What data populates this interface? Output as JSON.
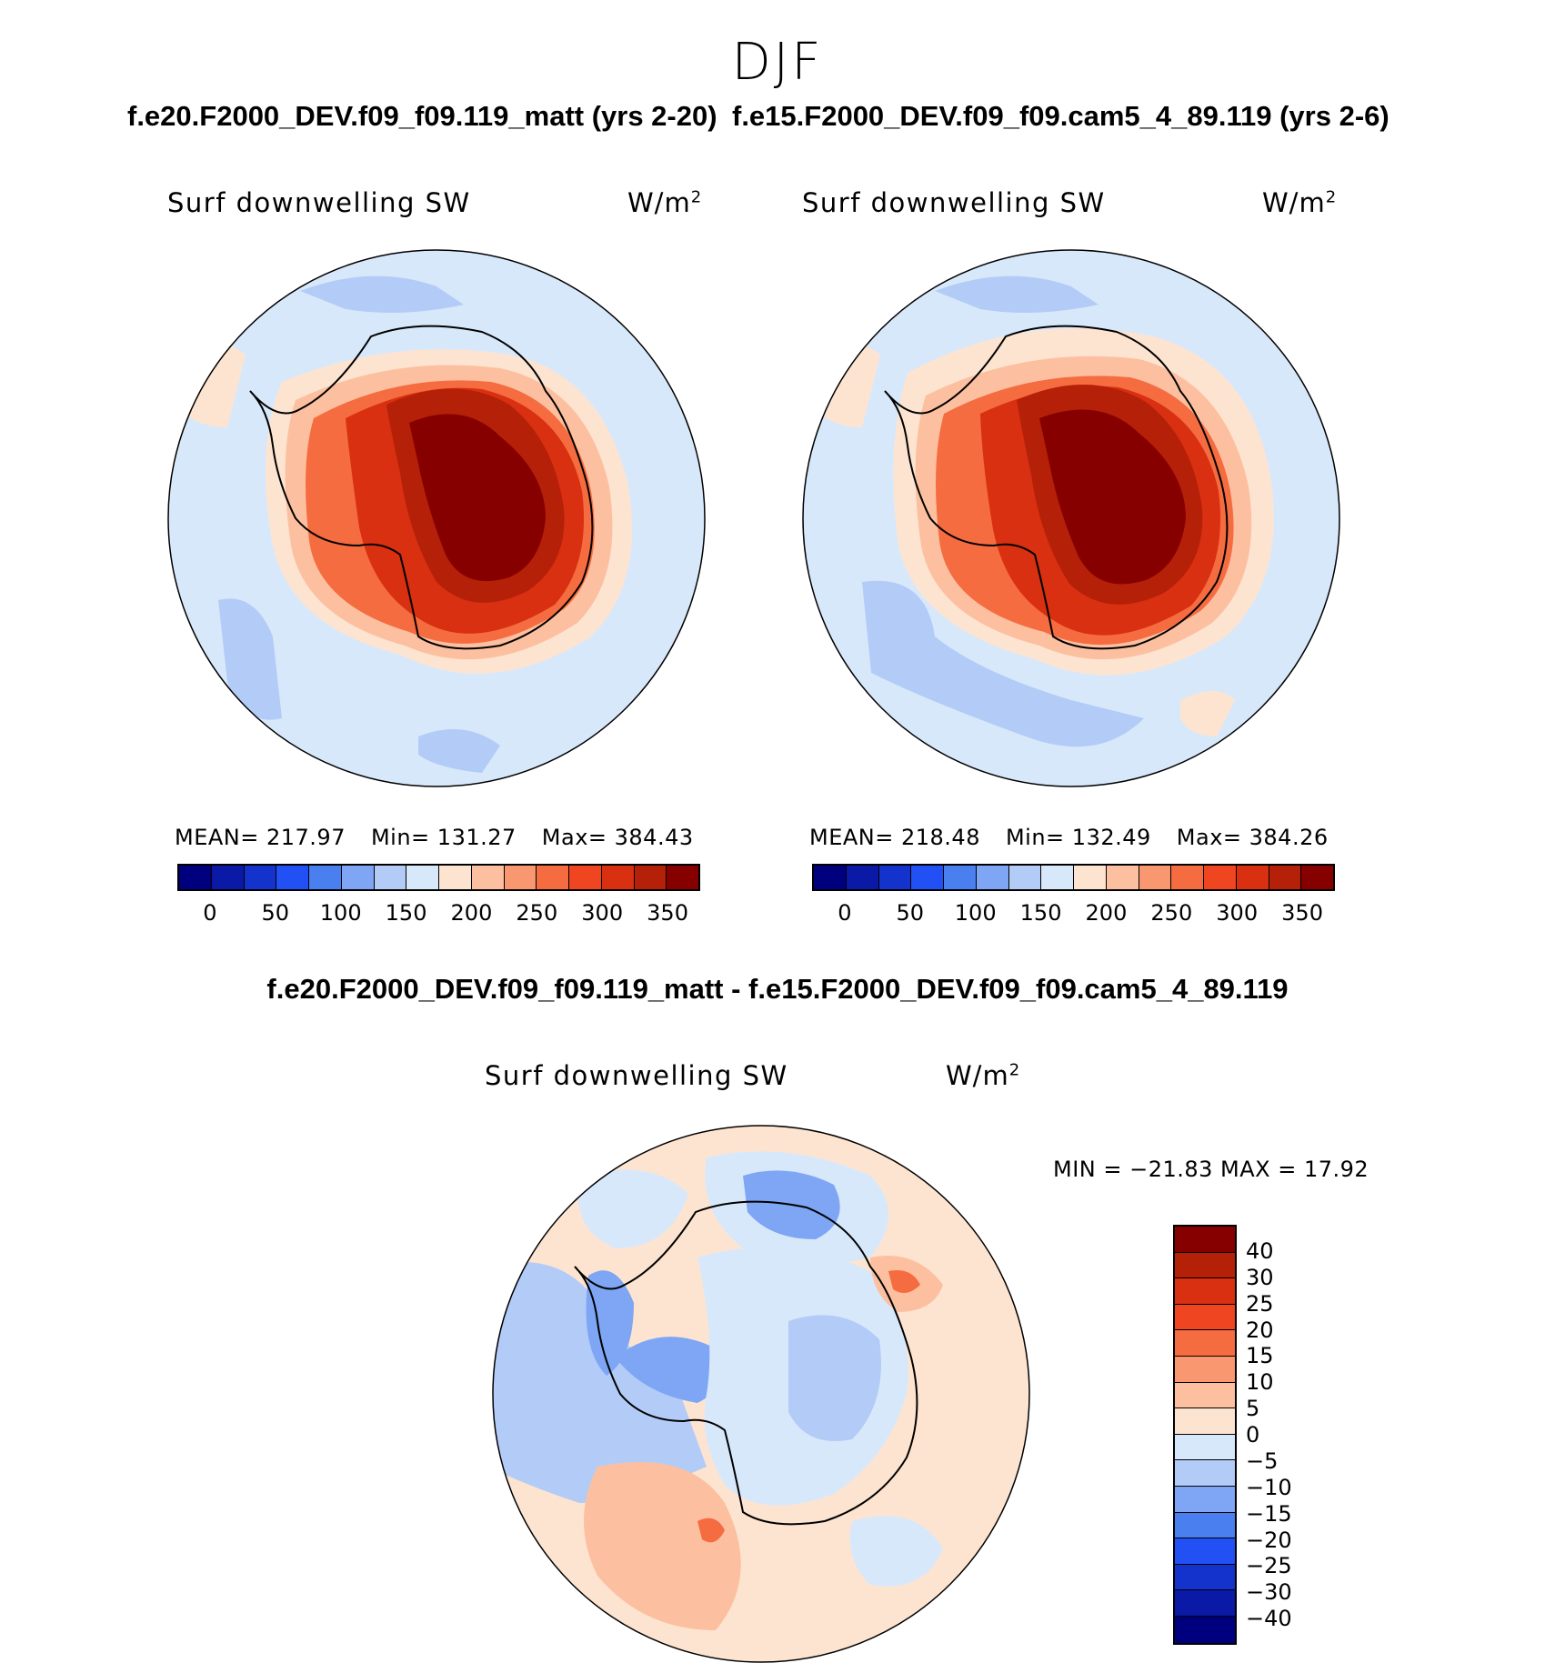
{
  "season": "DJF",
  "panels": [
    {
      "title": "f.e20.F2000_DEV.f09_f09.119_matt (yrs 2-20)",
      "variable": "Surf downwelling SW",
      "units": "W/m",
      "units_sup": "2",
      "stats": {
        "mean_label": "MEAN= 217.97",
        "min_label": "Min= 131.27",
        "max_label": "Max= 384.43"
      }
    },
    {
      "title": "f.e15.F2000_DEV.f09_f09.cam5_4_89.119 (yrs 2-6)",
      "variable": "Surf downwelling SW",
      "units": "W/m",
      "units_sup": "2",
      "stats": {
        "mean_label": "MEAN= 218.48",
        "min_label": "Min= 132.49",
        "max_label": "Max= 384.26"
      }
    }
  ],
  "abs_colorbar": {
    "ticks": [
      "0",
      "50",
      "100",
      "150",
      "200",
      "250",
      "300",
      "350"
    ],
    "colors": [
      "#00007f",
      "#0a1aa6",
      "#1432cc",
      "#2150f5",
      "#4a7ff0",
      "#7ea6f5",
      "#b3ccf7",
      "#d8e8fb",
      "#fde4d1",
      "#fcc0a0",
      "#f99770",
      "#f56c40",
      "#ef4520",
      "#d83010",
      "#b52008",
      "#860000"
    ]
  },
  "diff": {
    "title": "f.e20.F2000_DEV.f09_f09.119_matt - f.e15.F2000_DEV.f09_f09.cam5_4_89.119",
    "variable": "Surf downwelling SW",
    "units": "W/m",
    "units_sup": "2",
    "minmax": "MIN = −21.83 MAX =   17.92",
    "colorbar": {
      "ticks": [
        "40",
        "30",
        "25",
        "20",
        "15",
        "10",
        "5",
        "0",
        "−5",
        "−10",
        "−15",
        "−20",
        "−25",
        "−30",
        "−40"
      ],
      "colors_top_to_bottom": [
        "#860000",
        "#b52008",
        "#d83010",
        "#ef4520",
        "#f56c40",
        "#f99770",
        "#fcc0a0",
        "#fde4d1",
        "#d8e8fb",
        "#b3ccf7",
        "#7ea6f5",
        "#4a7ff0",
        "#2150f5",
        "#1432cc",
        "#0a1aa6",
        "#00007f"
      ]
    }
  }
}
